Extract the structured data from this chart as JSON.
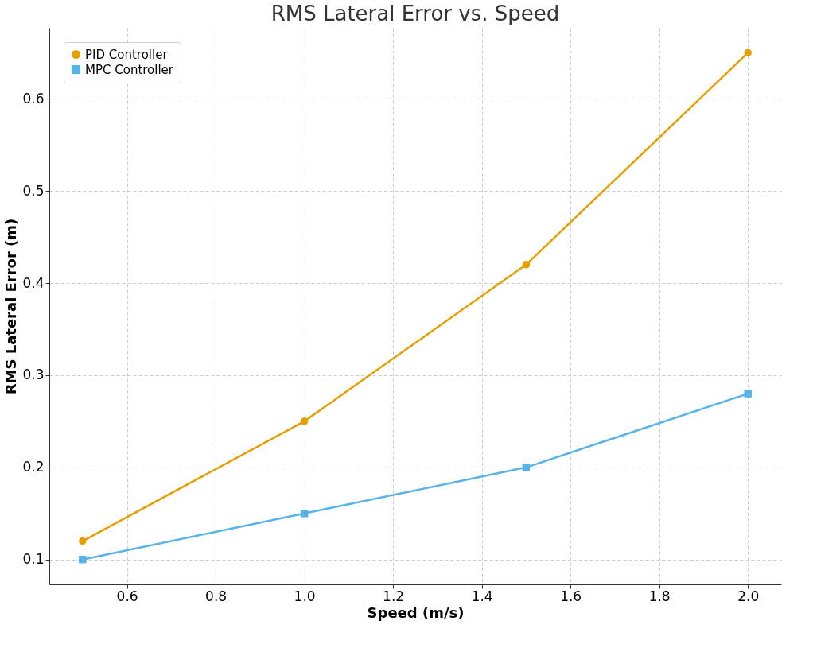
{
  "chart_data": {
    "type": "line",
    "title": "RMS Lateral Error vs. Speed",
    "xlabel": "Speed (m/s)",
    "ylabel": "RMS Lateral Error (m)",
    "x": [
      0.5,
      1.0,
      1.5,
      2.0
    ],
    "series": [
      {
        "name": "PID Controller",
        "color": "#e69f00",
        "marker": "circle",
        "values": [
          0.12,
          0.25,
          0.42,
          0.65
        ]
      },
      {
        "name": "MPC Controller",
        "color": "#56b4e9",
        "marker": "square",
        "values": [
          0.1,
          0.15,
          0.2,
          0.28
        ]
      }
    ],
    "xlim": [
      0.425,
      2.075
    ],
    "xticks": [
      {
        "value": 0.6,
        "label": "0.6"
      },
      {
        "value": 0.8,
        "label": "0.8"
      },
      {
        "value": 1.0,
        "label": "1.0"
      },
      {
        "value": 1.2,
        "label": "1.2"
      },
      {
        "value": 1.4,
        "label": "1.4"
      },
      {
        "value": 1.6,
        "label": "1.6"
      },
      {
        "value": 1.8,
        "label": "1.8"
      },
      {
        "value": 2.0,
        "label": "2.0"
      }
    ],
    "ylim": [
      0.073,
      0.677
    ],
    "yticks": [
      0.1,
      0.2,
      0.3,
      0.4,
      0.5,
      0.6
    ],
    "grid": true,
    "legend": "top left",
    "line_style": "solid"
  }
}
